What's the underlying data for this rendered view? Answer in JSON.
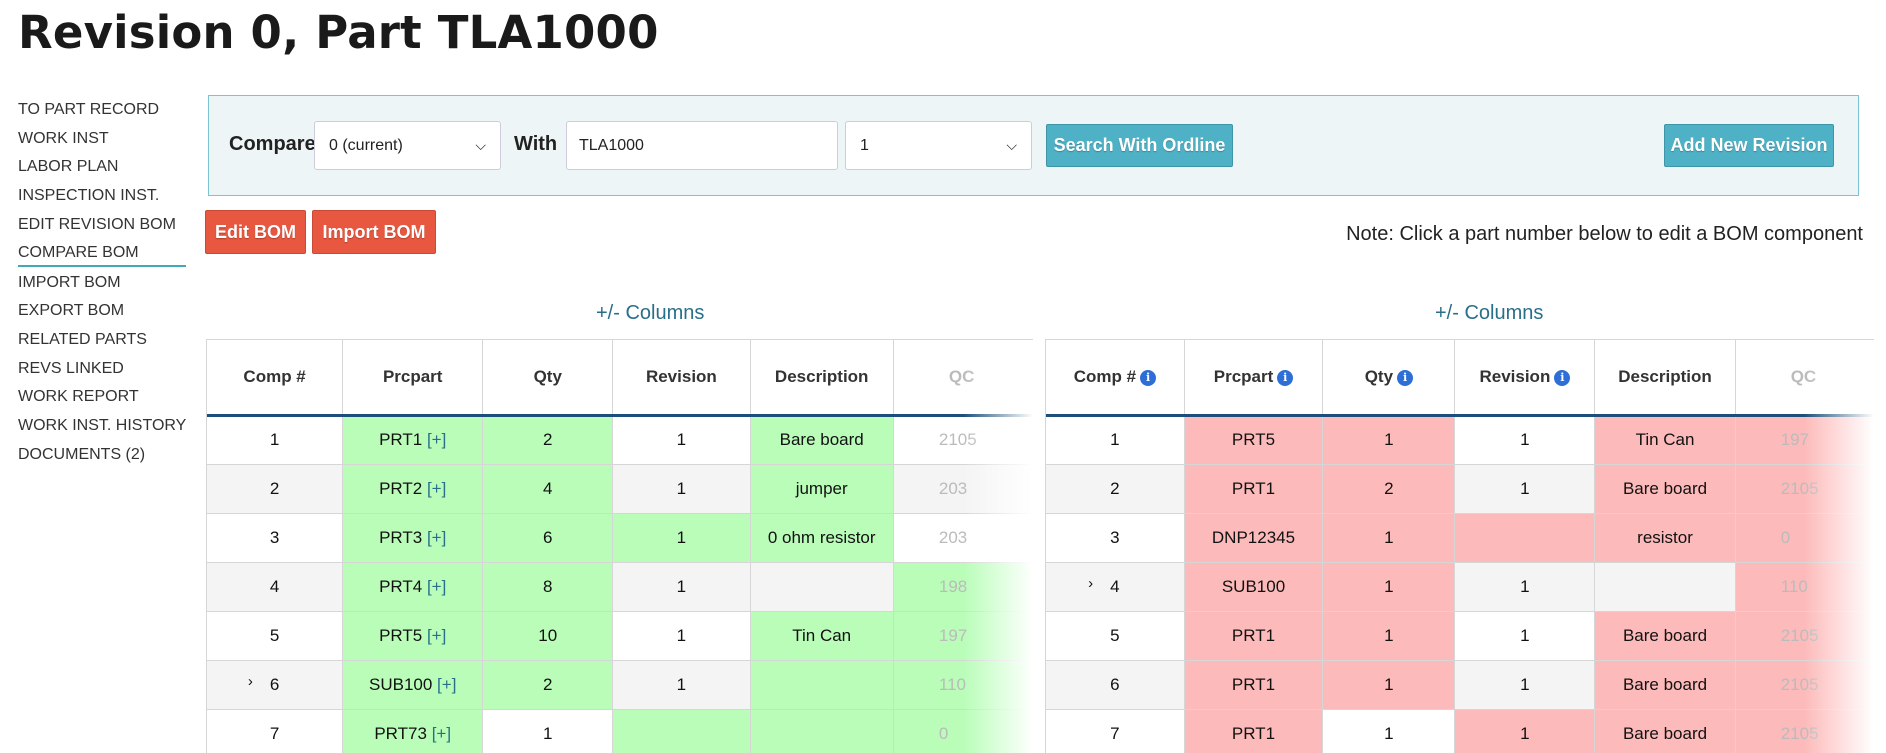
{
  "page": {
    "title": "Revision 0, Part TLA1000"
  },
  "sidebar": {
    "items": [
      {
        "label": "TO PART RECORD"
      },
      {
        "label": "WORK INST"
      },
      {
        "label": "LABOR PLAN"
      },
      {
        "label": "INSPECTION INST."
      },
      {
        "label": "EDIT REVISION BOM"
      },
      {
        "label": "COMPARE BOM",
        "active": true
      },
      {
        "label": "IMPORT BOM"
      },
      {
        "label": "EXPORT BOM"
      },
      {
        "label": "RELATED PARTS"
      },
      {
        "label": "REVS LINKED"
      },
      {
        "label": "WORK REPORT"
      },
      {
        "label": "WORK INST. HISTORY"
      },
      {
        "label": "DOCUMENTS (2)"
      }
    ]
  },
  "compare": {
    "compare_label": "Compare",
    "compare_value": "0 (current)",
    "with_label": "With",
    "with_part": "TLA1000",
    "with_revision": "1",
    "search_button": "Search With Ordline",
    "add_button": "Add New Revision"
  },
  "actions": {
    "edit_bom": "Edit BOM",
    "import_bom": "Import BOM"
  },
  "note": "Note: Click a part number below to edit a BOM component",
  "left_table": {
    "columns_toggle": "+/- Columns",
    "headers": [
      "Comp #",
      "Prcpart",
      "Qty",
      "Revision",
      "Description",
      "QC"
    ],
    "rows": [
      {
        "comp": "1",
        "prcpart": "PRT1",
        "qty": "2",
        "revision": "1",
        "description": "Bare board",
        "qc": "2105"
      },
      {
        "comp": "2",
        "prcpart": "PRT2",
        "qty": "4",
        "revision": "1",
        "description": "jumper",
        "qc": "203"
      },
      {
        "comp": "3",
        "prcpart": "PRT3",
        "qty": "6",
        "revision": "1",
        "description": "0 ohm resistor",
        "qc": "203"
      },
      {
        "comp": "4",
        "prcpart": "PRT4",
        "qty": "8",
        "revision": "1",
        "description": "",
        "qc": "198"
      },
      {
        "comp": "5",
        "prcpart": "PRT5",
        "qty": "10",
        "revision": "1",
        "description": "Tin Can",
        "qc": "197"
      },
      {
        "comp": "6",
        "prcpart": "SUB100",
        "qty": "2",
        "revision": "1",
        "description": "",
        "qc": "110"
      },
      {
        "comp": "7",
        "prcpart": "PRT73",
        "qty": "1",
        "revision": "",
        "description": "",
        "qc": "0"
      }
    ],
    "plus_marker": "[+]"
  },
  "right_table": {
    "columns_toggle": "+/- Columns",
    "headers": [
      "Comp #",
      "Prcpart",
      "Qty",
      "Revision",
      "Description",
      "QC"
    ],
    "rows": [
      {
        "comp": "1",
        "prcpart": "PRT5",
        "qty": "1",
        "revision": "1",
        "description": "Tin Can",
        "qc": "197"
      },
      {
        "comp": "2",
        "prcpart": "PRT1",
        "qty": "2",
        "revision": "1",
        "description": "Bare board",
        "qc": "2105"
      },
      {
        "comp": "3",
        "prcpart": "DNP12345",
        "qty": "1",
        "revision": "",
        "description": "resistor",
        "qc": "0"
      },
      {
        "comp": "4",
        "prcpart": "SUB100",
        "qty": "1",
        "revision": "1",
        "description": "",
        "qc": "110"
      },
      {
        "comp": "5",
        "prcpart": "PRT1",
        "qty": "1",
        "revision": "1",
        "description": "Bare board",
        "qc": "2105"
      },
      {
        "comp": "6",
        "prcpart": "PRT1",
        "qty": "1",
        "revision": "1",
        "description": "Bare board",
        "qc": "2105"
      },
      {
        "comp": "7",
        "prcpart": "PRT1",
        "qty": "1",
        "revision": "1",
        "description": "Bare board",
        "qc": "2105"
      }
    ]
  },
  "expand_icon": "›",
  "colors": {
    "added": "#b9fdb9",
    "changed": "#fdbaba",
    "accent": "#4fb1c6",
    "danger": "#e8573f"
  }
}
